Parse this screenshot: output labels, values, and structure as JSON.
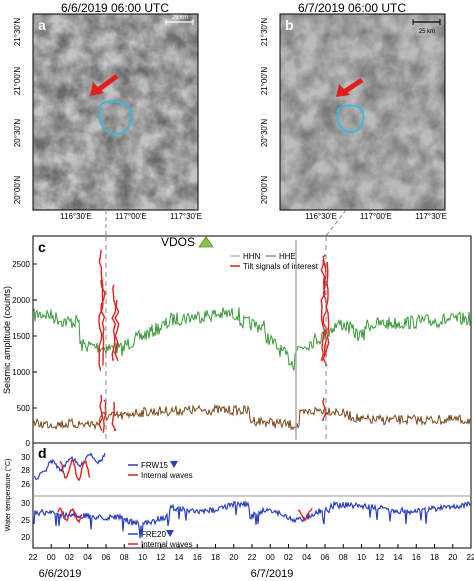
{
  "panel_a": {
    "letter": "a",
    "time_label": "6/6/2019 06:00 UTC",
    "scale_label": "25 km",
    "lat_ticks": [
      "21°30'N",
      "21°00'N",
      "20°30'N",
      "20°00'N"
    ],
    "lon_ticks": [
      "116°30'E",
      "117°00'E",
      "117°30'E"
    ]
  },
  "panel_b": {
    "letter": "b",
    "time_label": "6/7/2019 06:00 UTC",
    "scale_label": "25 km",
    "lat_ticks": [
      "21°30'N",
      "21°00'N",
      "20°30'N",
      "20°00'N"
    ],
    "lon_ticks": [
      "116°30'E",
      "117°00'E",
      "117°30'E"
    ]
  },
  "panel_c": {
    "letter": "c",
    "station": "VDOS",
    "legend": [
      "HHN",
      "HHE",
      "Tilt signals of interest"
    ],
    "ylabel": "Seismic amplitude (counts)",
    "yticks": [
      "0",
      "500",
      "1000",
      "1500",
      "2000",
      "2500"
    ]
  },
  "panel_d": {
    "letter": "d",
    "ylabel": "Water temperature (°C)",
    "top_legend": [
      "FRW15",
      "Internal waves"
    ],
    "bottom_legend": [
      "FRE20",
      "Internal waves"
    ],
    "top_yticks": [
      "26",
      "28",
      "30"
    ],
    "bottom_yticks": [
      "20",
      "25",
      "30"
    ],
    "xticks": [
      "22",
      "00",
      "02",
      "04",
      "06",
      "08",
      "10",
      "12",
      "14",
      "16",
      "18",
      "20",
      "22",
      "00",
      "02",
      "04",
      "06",
      "08",
      "10",
      "12",
      "14",
      "16",
      "18",
      "20",
      "22"
    ],
    "dates": [
      "6/6/2019",
      "6/7/2019"
    ]
  },
  "colors": {
    "hhn": "#999999",
    "hhe": "#8b5a2b",
    "green": "#3a9a3a",
    "brown": "#7a4a1e",
    "tilt": "#e02020",
    "water": "#2a3fbf",
    "eddy_outline": "#3bb8e0",
    "arrow": "#e02020"
  }
}
